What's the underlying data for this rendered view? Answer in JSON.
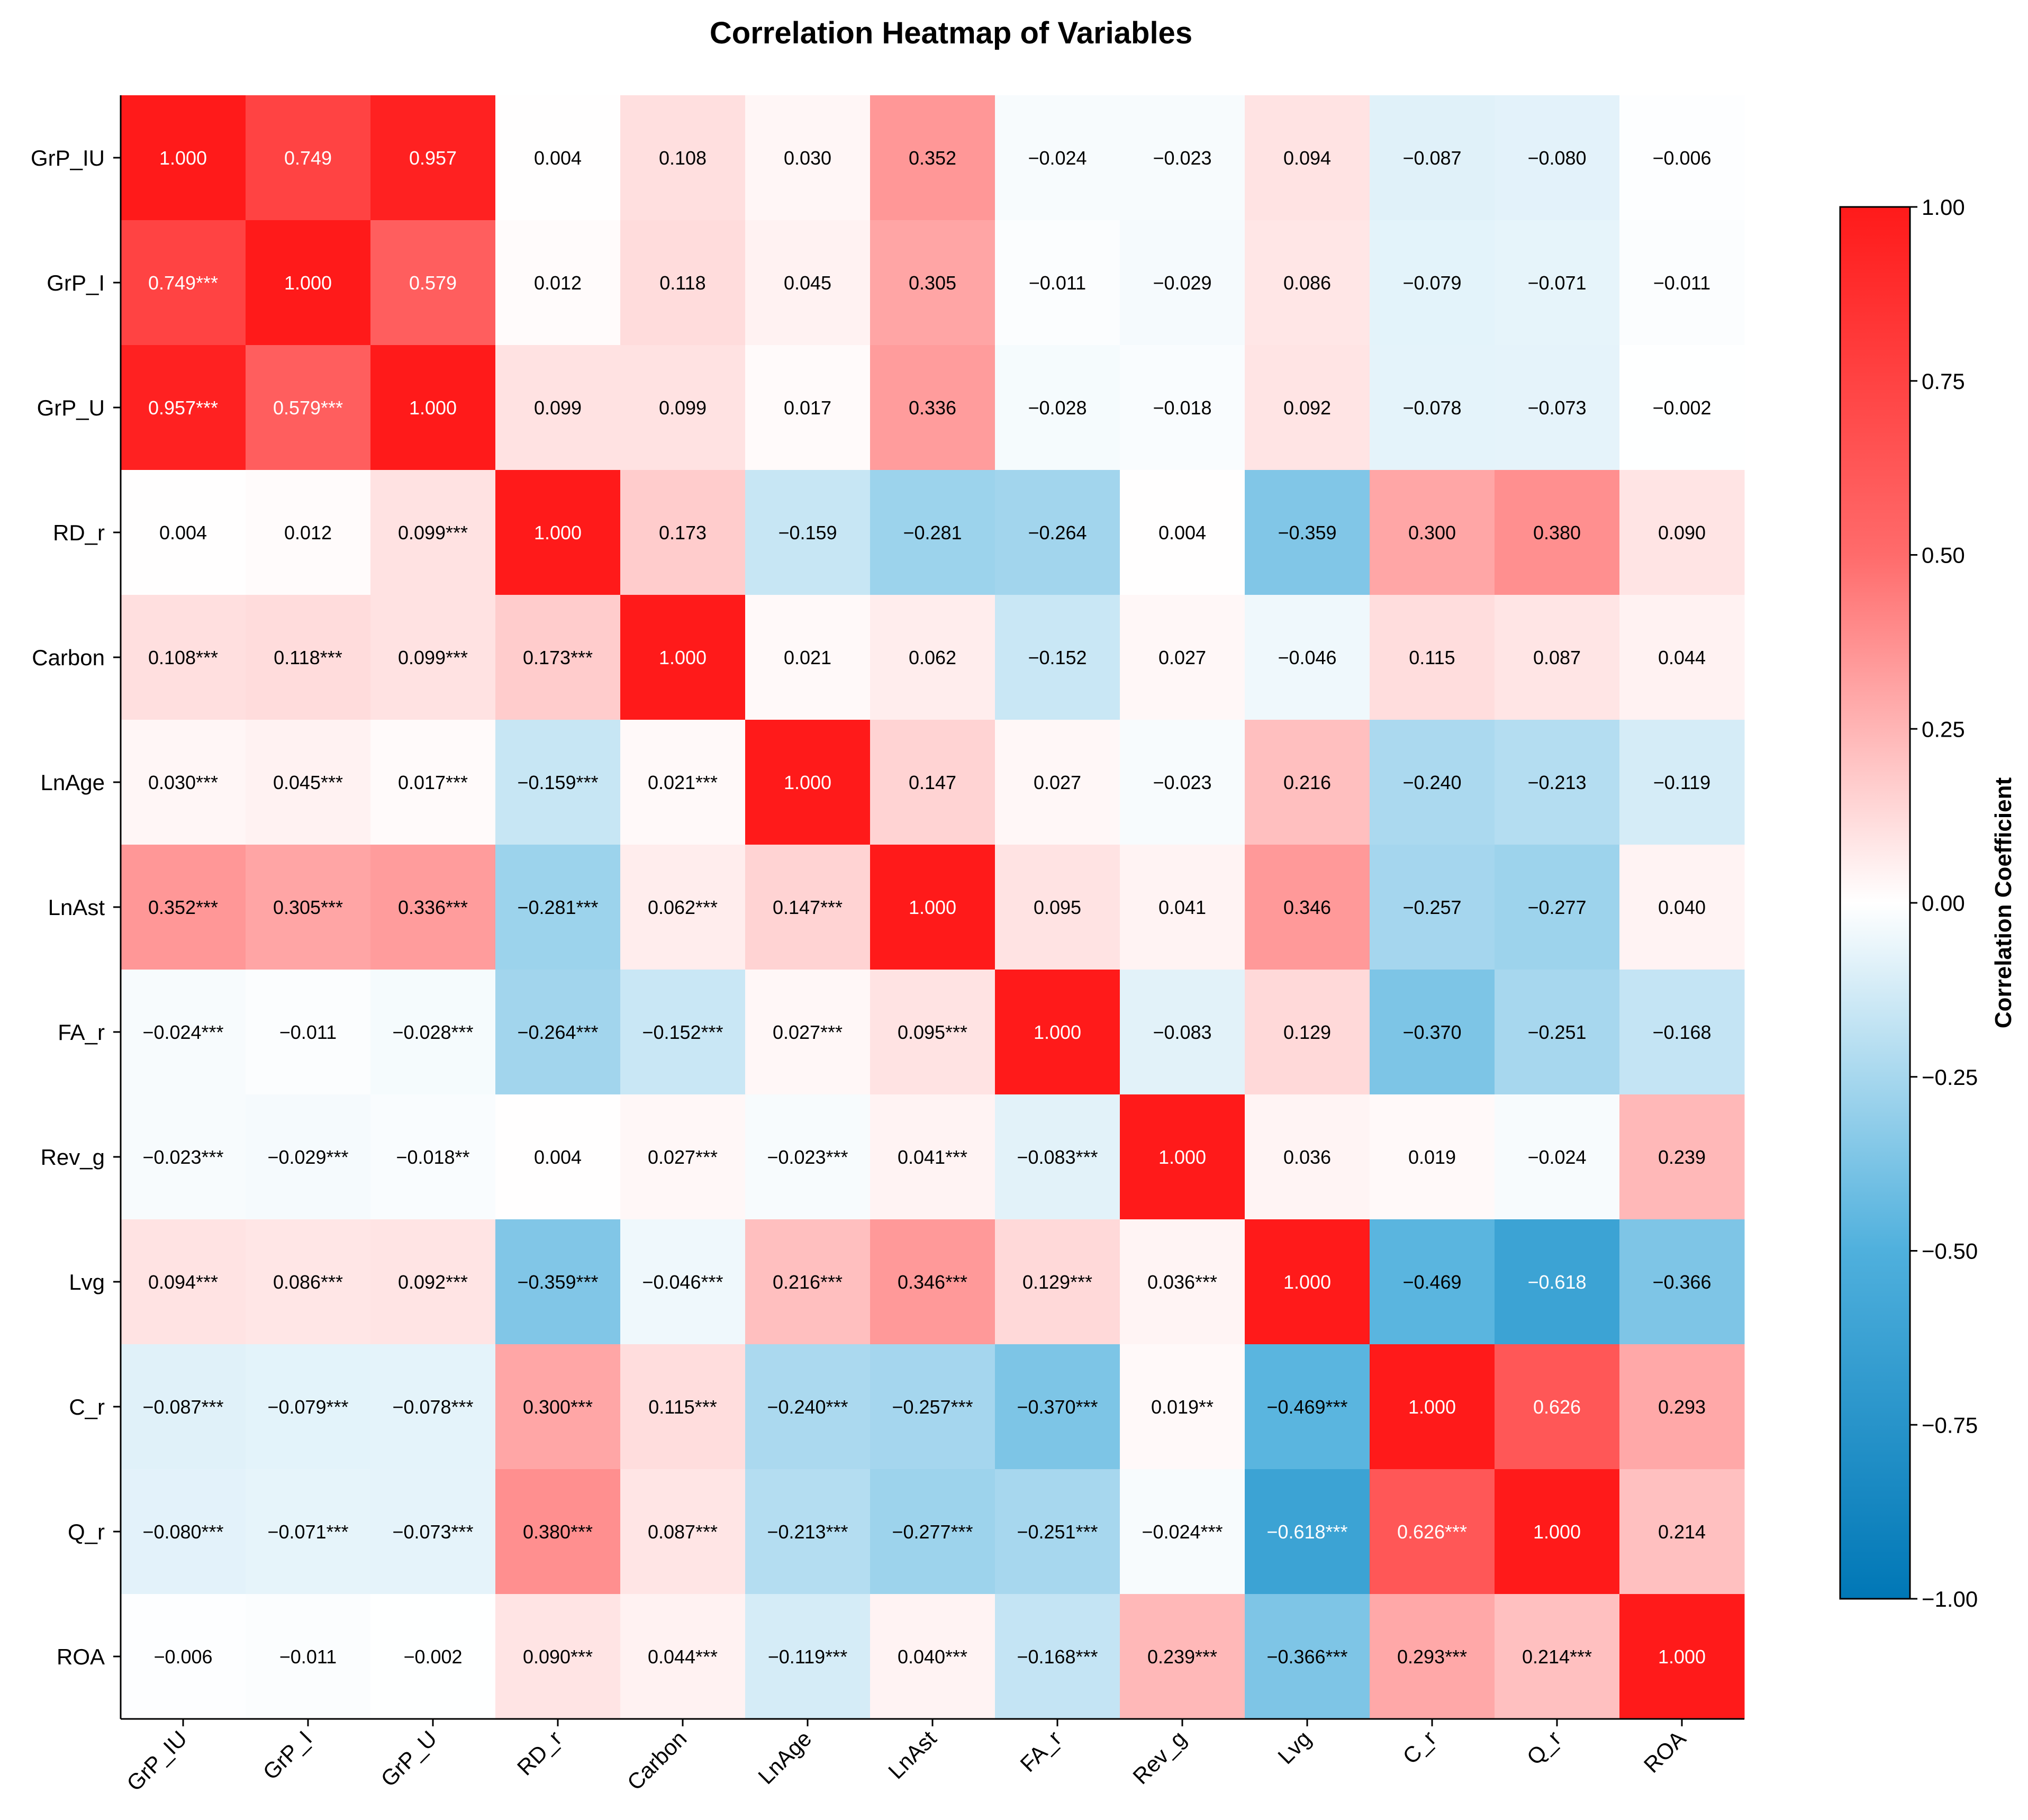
{
  "chart_data": {
    "type": "heatmap",
    "title": "Correlation Heatmap of Variables",
    "variables": [
      "GrP_IU",
      "GrP_I",
      "GrP_U",
      "RD_r",
      "Carbon",
      "LnAge",
      "LnAst",
      "FA_r",
      "Rev_g",
      "Lvg",
      "C_r",
      "Q_r",
      "ROA"
    ],
    "values": [
      [
        1.0,
        0.749,
        0.957,
        0.004,
        0.108,
        0.03,
        0.352,
        -0.024,
        -0.023,
        0.094,
        -0.087,
        -0.08,
        -0.006
      ],
      [
        0.749,
        1.0,
        0.579,
        0.012,
        0.118,
        0.045,
        0.305,
        -0.011,
        -0.029,
        0.086,
        -0.079,
        -0.071,
        -0.011
      ],
      [
        0.957,
        0.579,
        1.0,
        0.099,
        0.099,
        0.017,
        0.336,
        -0.028,
        -0.018,
        0.092,
        -0.078,
        -0.073,
        -0.002
      ],
      [
        0.004,
        0.012,
        0.099,
        1.0,
        0.173,
        -0.159,
        -0.281,
        -0.264,
        0.004,
        -0.359,
        0.3,
        0.38,
        0.09
      ],
      [
        0.108,
        0.118,
        0.099,
        0.173,
        1.0,
        0.021,
        0.062,
        -0.152,
        0.027,
        -0.046,
        0.115,
        0.087,
        0.044
      ],
      [
        0.03,
        0.045,
        0.017,
        -0.159,
        0.021,
        1.0,
        0.147,
        0.027,
        -0.023,
        0.216,
        -0.24,
        -0.213,
        -0.119
      ],
      [
        0.352,
        0.305,
        0.336,
        -0.281,
        0.062,
        0.147,
        1.0,
        0.095,
        0.041,
        0.346,
        -0.257,
        -0.277,
        0.04
      ],
      [
        -0.024,
        -0.011,
        -0.028,
        -0.264,
        -0.152,
        0.027,
        0.095,
        1.0,
        -0.083,
        0.129,
        -0.37,
        -0.251,
        -0.168
      ],
      [
        -0.023,
        -0.029,
        -0.018,
        0.004,
        0.027,
        -0.023,
        0.041,
        -0.083,
        1.0,
        0.036,
        0.019,
        -0.024,
        0.239
      ],
      [
        0.094,
        0.086,
        0.092,
        -0.359,
        -0.046,
        0.216,
        0.346,
        0.129,
        0.036,
        1.0,
        -0.469,
        -0.618,
        -0.366
      ],
      [
        -0.087,
        -0.079,
        -0.078,
        0.3,
        0.115,
        -0.24,
        -0.257,
        -0.37,
        0.019,
        -0.469,
        1.0,
        0.626,
        0.293
      ],
      [
        -0.08,
        -0.071,
        -0.073,
        0.38,
        0.087,
        -0.213,
        -0.277,
        -0.251,
        -0.024,
        -0.618,
        0.626,
        1.0,
        0.214
      ],
      [
        -0.006,
        -0.011,
        -0.002,
        0.09,
        0.044,
        -0.119,
        0.04,
        -0.168,
        0.239,
        -0.366,
        0.293,
        0.214,
        1.0
      ]
    ],
    "cell_labels": [
      [
        "1.000",
        "0.749",
        "0.957",
        "0.004",
        "0.108",
        "0.030",
        "0.352",
        "−0.024",
        "−0.023",
        "0.094",
        "−0.087",
        "−0.080",
        "−0.006"
      ],
      [
        "0.749***",
        "1.000",
        "0.579",
        "0.012",
        "0.118",
        "0.045",
        "0.305",
        "−0.011",
        "−0.029",
        "0.086",
        "−0.079",
        "−0.071",
        "−0.011"
      ],
      [
        "0.957***",
        "0.579***",
        "1.000",
        "0.099",
        "0.099",
        "0.017",
        "0.336",
        "−0.028",
        "−0.018",
        "0.092",
        "−0.078",
        "−0.073",
        "−0.002"
      ],
      [
        "0.004",
        "0.012",
        "0.099***",
        "1.000",
        "0.173",
        "−0.159",
        "−0.281",
        "−0.264",
        "0.004",
        "−0.359",
        "0.300",
        "0.380",
        "0.090"
      ],
      [
        "0.108***",
        "0.118***",
        "0.099***",
        "0.173***",
        "1.000",
        "0.021",
        "0.062",
        "−0.152",
        "0.027",
        "−0.046",
        "0.115",
        "0.087",
        "0.044"
      ],
      [
        "0.030***",
        "0.045***",
        "0.017***",
        "−0.159***",
        "0.021***",
        "1.000",
        "0.147",
        "0.027",
        "−0.023",
        "0.216",
        "−0.240",
        "−0.213",
        "−0.119"
      ],
      [
        "0.352***",
        "0.305***",
        "0.336***",
        "−0.281***",
        "0.062***",
        "0.147***",
        "1.000",
        "0.095",
        "0.041",
        "0.346",
        "−0.257",
        "−0.277",
        "0.040"
      ],
      [
        "−0.024***",
        "−0.011",
        "−0.028***",
        "−0.264***",
        "−0.152***",
        "0.027***",
        "0.095***",
        "1.000",
        "−0.083",
        "0.129",
        "−0.370",
        "−0.251",
        "−0.168"
      ],
      [
        "−0.023***",
        "−0.029***",
        "−0.018**",
        "0.004",
        "0.027***",
        "−0.023***",
        "0.041***",
        "−0.083***",
        "1.000",
        "0.036",
        "0.019",
        "−0.024",
        "0.239"
      ],
      [
        "0.094***",
        "0.086***",
        "0.092***",
        "−0.359***",
        "−0.046***",
        "0.216***",
        "0.346***",
        "0.129***",
        "0.036***",
        "1.000",
        "−0.469",
        "−0.618",
        "−0.366"
      ],
      [
        "−0.087***",
        "−0.079***",
        "−0.078***",
        "0.300***",
        "0.115***",
        "−0.240***",
        "−0.257***",
        "−0.370***",
        "0.019**",
        "−0.469***",
        "1.000",
        "0.626",
        "0.293"
      ],
      [
        "−0.080***",
        "−0.071***",
        "−0.073***",
        "0.380***",
        "0.087***",
        "−0.213***",
        "−0.277***",
        "−0.251***",
        "−0.024***",
        "−0.618***",
        "0.626***",
        "1.000",
        "0.214"
      ],
      [
        "−0.006",
        "−0.011",
        "−0.002",
        "0.090***",
        "0.044***",
        "−0.119***",
        "0.040***",
        "−0.168***",
        "0.239***",
        "−0.366***",
        "0.293***",
        "0.214***",
        "1.000"
      ]
    ],
    "colorbar": {
      "label": "Correlation Coefficient",
      "range": [
        -1,
        1
      ],
      "ticks": [
        1.0,
        0.75,
        0.5,
        0.25,
        0.0,
        -0.25,
        -0.5,
        -0.75,
        -1.0
      ],
      "tick_labels": [
        "1.00",
        "0.75",
        "0.50",
        "0.25",
        "0.00",
        "−0.25",
        "−0.50",
        "−0.75",
        "−1.00"
      ],
      "stops": [
        {
          "value": -1.0,
          "color": "#0077b6"
        },
        {
          "value": -0.5,
          "color": "#4fb0dd"
        },
        {
          "value": 0.0,
          "color": "#ffffff"
        },
        {
          "value": 0.5,
          "color": "#ff6b6b"
        },
        {
          "value": 1.0,
          "color": "#ff1a1a"
        }
      ]
    }
  }
}
